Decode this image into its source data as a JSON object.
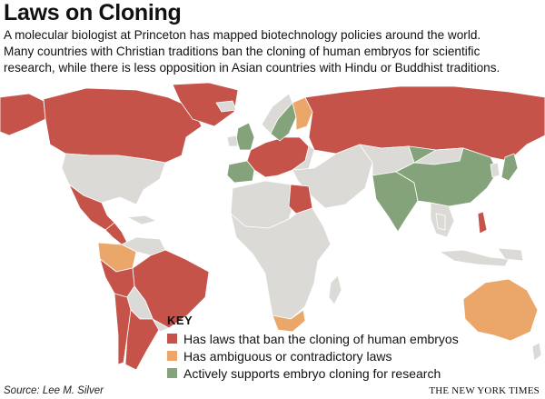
{
  "title": "Laws on Cloning",
  "intro": [
    "A molecular biologist at Princeton has mapped biotechnology policies around the world.",
    "Many countries with Christian traditions ban the cloning of human embryos for scientific",
    "research, while there is less opposition in Asian countries with Hindu or Buddhist traditions."
  ],
  "colors": {
    "ban": "#c5534a",
    "ambiguous": "#eaa769",
    "supports": "#84a37a",
    "no_policy": "#dcdad6",
    "ocean": "#ffffff"
  },
  "key": {
    "title": "KEY",
    "items": [
      {
        "label": "Has laws that ban the cloning of human embryos",
        "color": "#c5534a"
      },
      {
        "label": "Has ambiguous or contradictory laws",
        "color": "#eaa769"
      },
      {
        "label": "Actively supports embryo cloning for research",
        "color": "#84a37a"
      }
    ]
  },
  "map": {
    "regions": [
      {
        "name": "Canada",
        "category": "ban"
      },
      {
        "name": "Greenland",
        "category": "ban"
      },
      {
        "name": "Alaska",
        "category": "ban"
      },
      {
        "name": "Mexico",
        "category": "ban"
      },
      {
        "name": "Central America",
        "category": "ban"
      },
      {
        "name": "Colombia",
        "category": "ambiguous"
      },
      {
        "name": "Brazil",
        "category": "ban"
      },
      {
        "name": "Peru",
        "category": "ban"
      },
      {
        "name": "Argentina",
        "category": "ban"
      },
      {
        "name": "Chile",
        "category": "ban"
      },
      {
        "name": "Russia",
        "category": "ban"
      },
      {
        "name": "Western Europe",
        "category": "ban"
      },
      {
        "name": "United Kingdom",
        "category": "supports"
      },
      {
        "name": "Spain",
        "category": "supports"
      },
      {
        "name": "Sweden",
        "category": "supports"
      },
      {
        "name": "Finland",
        "category": "ambiguous"
      },
      {
        "name": "Egypt",
        "category": "ban"
      },
      {
        "name": "South Africa",
        "category": "ambiguous"
      },
      {
        "name": "India",
        "category": "supports"
      },
      {
        "name": "China",
        "category": "supports"
      },
      {
        "name": "Japan",
        "category": "supports"
      },
      {
        "name": "Philippines",
        "category": "ban"
      },
      {
        "name": "Australia",
        "category": "ambiguous"
      }
    ]
  },
  "source": "Source: Lee M. Silver",
  "credit": "THE NEW YORK TIMES"
}
